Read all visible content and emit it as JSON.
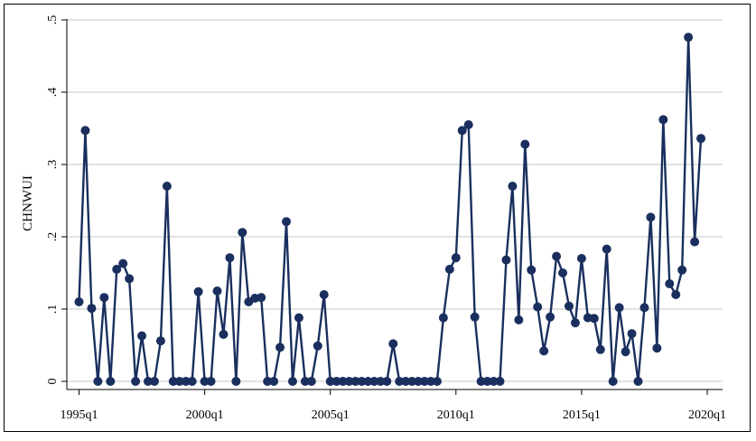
{
  "chart_data": {
    "type": "line",
    "title": "",
    "xlabel": "",
    "ylabel": "CHNWUI",
    "y_ticks": [
      0,
      0.1,
      0.2,
      0.3,
      0.4,
      0.5
    ],
    "y_tick_labels": [
      "0",
      ".1",
      ".2",
      ".3",
      ".4",
      ".5"
    ],
    "ylim": [
      0,
      0.5
    ],
    "x_ticks": [
      "1995q1",
      "2000q1",
      "2005q1",
      "2010q1",
      "2015q1",
      "2020q1"
    ],
    "x_range": [
      "1995q1",
      "2020q1"
    ],
    "grid": true,
    "line_color": "#1a2f5e",
    "marker": "circle",
    "series": [
      {
        "x": [
          "1995q1",
          "1995q2",
          "1995q3",
          "1995q4",
          "1996q1",
          "1996q2",
          "1996q3",
          "1996q4",
          "1997q1",
          "1997q2",
          "1997q3",
          "1997q4",
          "1998q1",
          "1998q2",
          "1998q3",
          "1998q4",
          "1999q1",
          "1999q2",
          "1999q3",
          "1999q4",
          "2000q1",
          "2000q2",
          "2000q3",
          "2000q4",
          "2001q1",
          "2001q2",
          "2001q3",
          "2001q4",
          "2002q1",
          "2002q2",
          "2002q3",
          "2002q4",
          "2003q1",
          "2003q2",
          "2003q3",
          "2003q4",
          "2004q1",
          "2004q2",
          "2004q3",
          "2004q4",
          "2005q1",
          "2005q2",
          "2005q3",
          "2005q4",
          "2006q1",
          "2006q2",
          "2006q3",
          "2006q4",
          "2007q1",
          "2007q2",
          "2007q3",
          "2007q4",
          "2008q1",
          "2008q2",
          "2008q3",
          "2008q4",
          "2009q1",
          "2009q2",
          "2009q3",
          "2009q4",
          "2010q1",
          "2010q2",
          "2010q3",
          "2010q4",
          "2011q1",
          "2011q2",
          "2011q3",
          "2011q4",
          "2012q1",
          "2012q2",
          "2012q3",
          "2012q4",
          "2013q1",
          "2013q2",
          "2013q3",
          "2013q4",
          "2014q1",
          "2014q2",
          "2014q3",
          "2014q4",
          "2015q1",
          "2015q2",
          "2015q3",
          "2015q4",
          "2016q1",
          "2016q2",
          "2016q3",
          "2016q4",
          "2017q1",
          "2017q2",
          "2017q3",
          "2017q4",
          "2018q1",
          "2018q2",
          "2018q3",
          "2018q4",
          "2019q1",
          "2019q2",
          "2019q3",
          "2019q4"
        ],
        "values": [
          0.11,
          0.347,
          0.101,
          0.0,
          0.116,
          0.0,
          0.155,
          0.163,
          0.142,
          0.0,
          0.063,
          0.0,
          0.0,
          0.056,
          0.27,
          0.0,
          0.0,
          0.0,
          0.0,
          0.124,
          0.0,
          0.0,
          0.125,
          0.065,
          0.171,
          0.0,
          0.206,
          0.11,
          0.115,
          0.116,
          0.0,
          0.0,
          0.047,
          0.221,
          0.0,
          0.088,
          0.0,
          0.0,
          0.049,
          0.12,
          0.0,
          0.0,
          0.0,
          0.0,
          0.0,
          0.0,
          0.0,
          0.0,
          0.0,
          0.0,
          0.052,
          0.0,
          0.0,
          0.0,
          0.0,
          0.0,
          0.0,
          0.0,
          0.088,
          0.155,
          0.171,
          0.347,
          0.355,
          0.089,
          0.0,
          0.0,
          0.0,
          0.0,
          0.168,
          0.27,
          0.085,
          0.328,
          0.154,
          0.103,
          0.042,
          0.089,
          0.173,
          0.15,
          0.104,
          0.081,
          0.17,
          0.088,
          0.087,
          0.044,
          0.183,
          0.0,
          0.102,
          0.041,
          0.066,
          0.0,
          0.102,
          0.227,
          0.046,
          0.362,
          0.135,
          0.12,
          0.154,
          0.476,
          0.193,
          0.336
        ]
      }
    ]
  }
}
